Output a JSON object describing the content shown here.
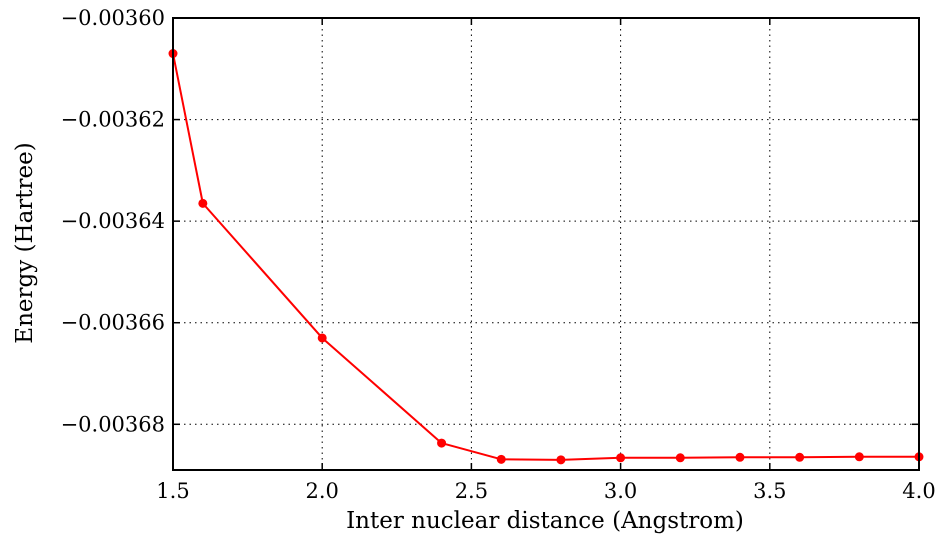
{
  "chart_data": {
    "type": "line",
    "title": "",
    "xlabel": "Inter nuclear distance (Angstrom)",
    "ylabel": "Energy (Hartree)",
    "xlim": [
      1.5,
      4.0
    ],
    "ylim": [
      -0.003689,
      -0.0036
    ],
    "x_ticks": [
      1.5,
      2.0,
      2.5,
      3.0,
      3.5,
      4.0
    ],
    "x_tick_labels": [
      "1.5",
      "2.0",
      "2.5",
      "3.0",
      "3.5",
      "4.0"
    ],
    "y_ticks": [
      -0.0036,
      -0.00362,
      -0.00364,
      -0.00366,
      -0.00368
    ],
    "y_tick_labels": [
      "−0.00360",
      "−0.00362",
      "−0.00364",
      "−0.00366",
      "−0.00368"
    ],
    "grid": true,
    "grid_style": "dotted",
    "legend": "none",
    "series": [
      {
        "color": "#ff0000",
        "marker": "circle",
        "x": [
          1.5,
          1.6,
          2.0,
          2.4,
          2.6,
          2.8,
          3.0,
          3.2,
          3.4,
          3.6,
          3.8,
          4.0
        ],
        "y": [
          -0.003607,
          -0.0036365,
          -0.003663,
          -0.0036837,
          -0.0036869,
          -0.003687,
          -0.0036866,
          -0.0036866,
          -0.0036865,
          -0.0036865,
          -0.0036864,
          -0.0036864
        ]
      }
    ]
  }
}
